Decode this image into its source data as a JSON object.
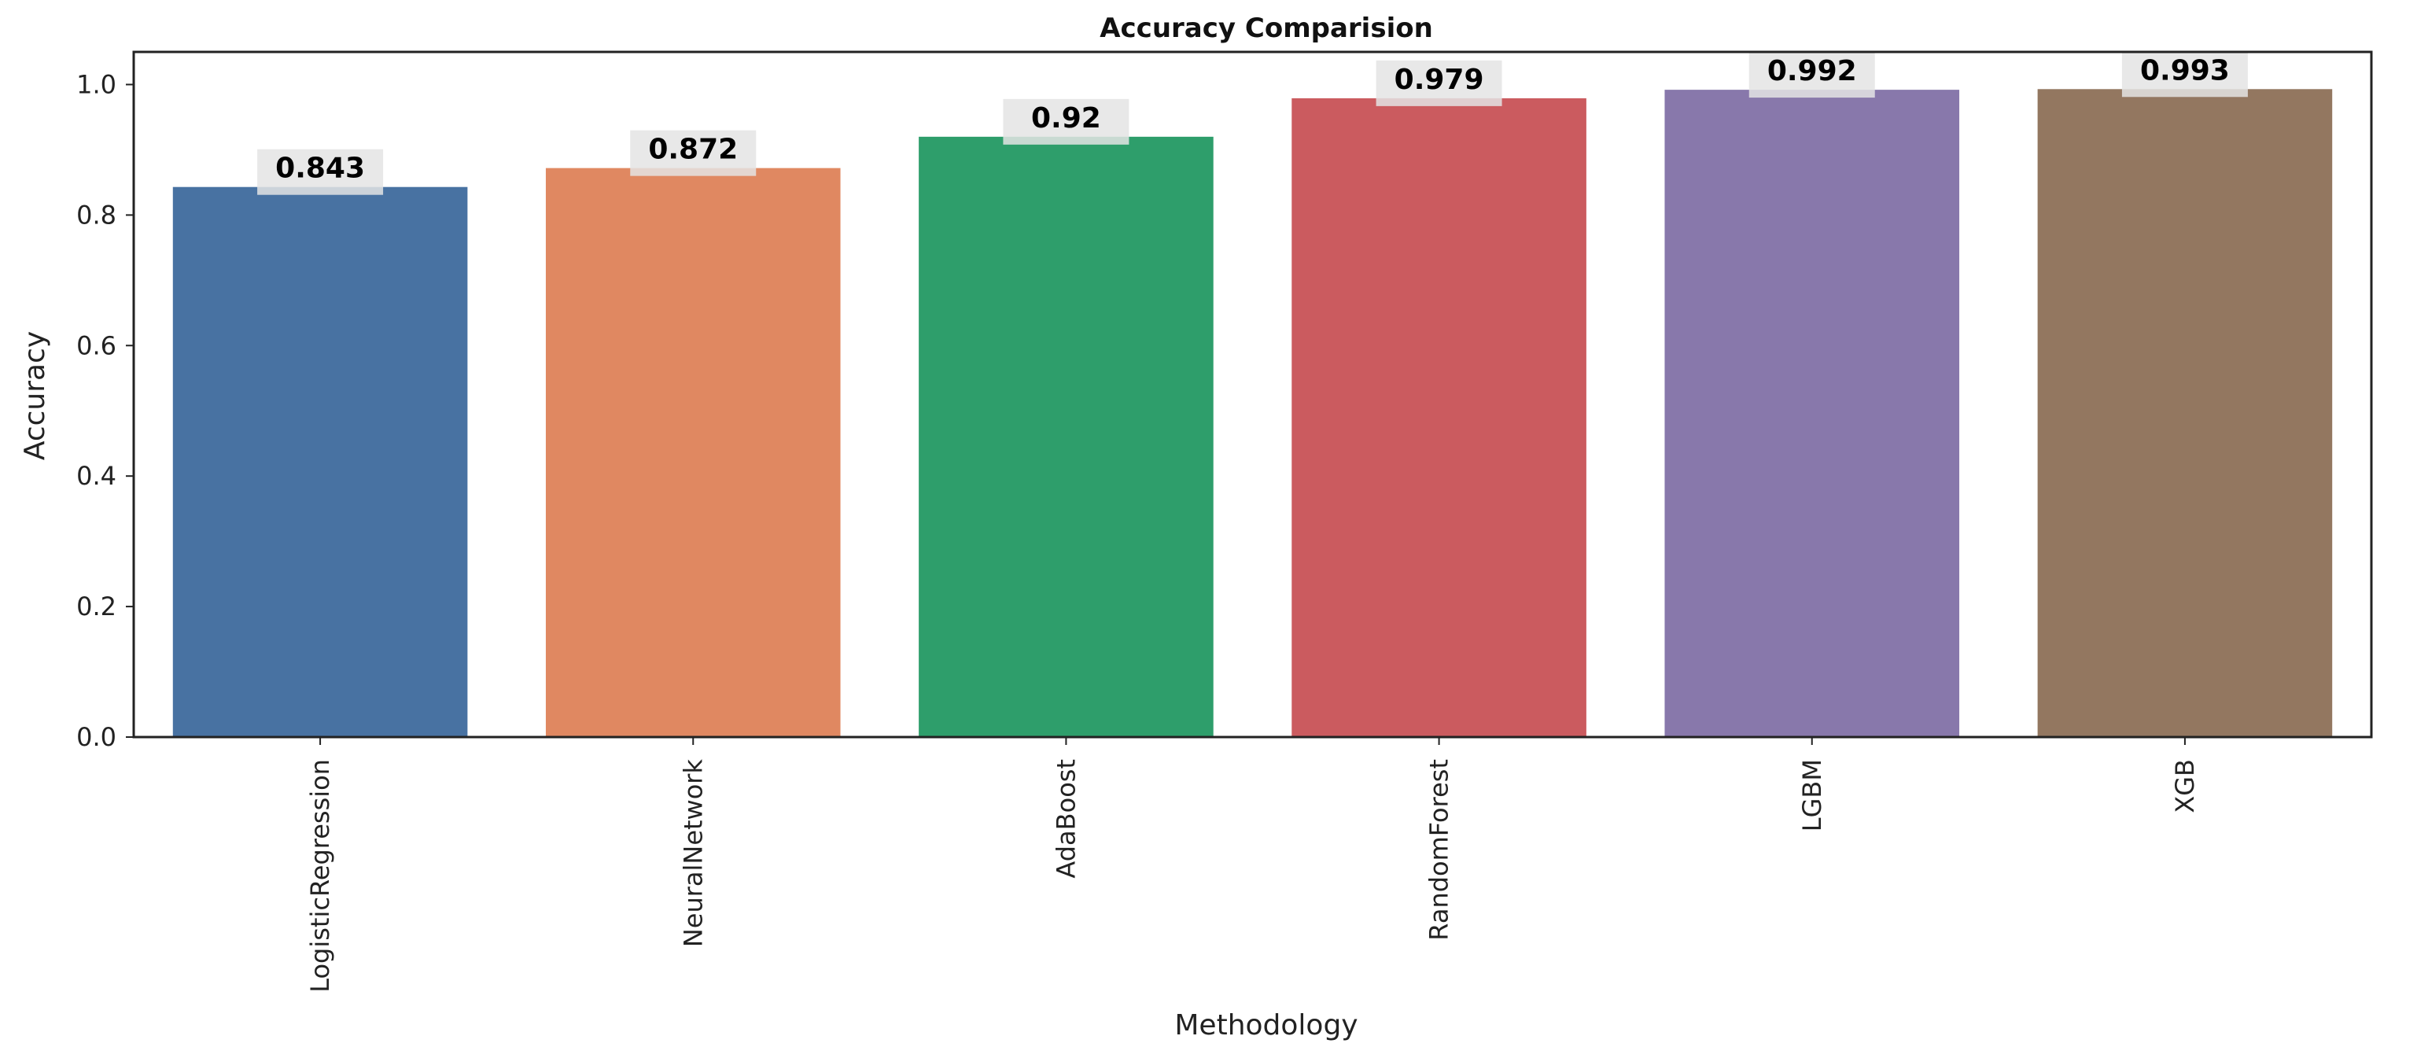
{
  "chart_data": {
    "type": "bar",
    "title": "Accuracy Comparision",
    "xlabel": "Methodology",
    "ylabel": "Accuracy",
    "categories": [
      "LogisticRegression",
      "NeuralNetwork",
      "AdaBoost",
      "RandomForest",
      "LGBM",
      "XGB"
    ],
    "values": [
      0.843,
      0.872,
      0.92,
      0.979,
      0.992,
      0.993
    ],
    "value_labels": [
      "0.843",
      "0.872",
      "0.92",
      "0.979",
      "0.992",
      "0.993"
    ],
    "colors": [
      "#4872a2",
      "#e08861",
      "#2e9e6b",
      "#cb5b5f",
      "#8878ab",
      "#937760"
    ],
    "ylim": [
      0,
      1.05
    ],
    "yticks": [
      0.0,
      0.2,
      0.4,
      0.6,
      0.8,
      1.0
    ],
    "ytick_labels": [
      "0.0",
      "0.2",
      "0.4",
      "0.6",
      "0.8",
      "1.0"
    ],
    "grid": false,
    "xtick_rotation": "vertical",
    "value_label_background": "#e4e4e4"
  }
}
